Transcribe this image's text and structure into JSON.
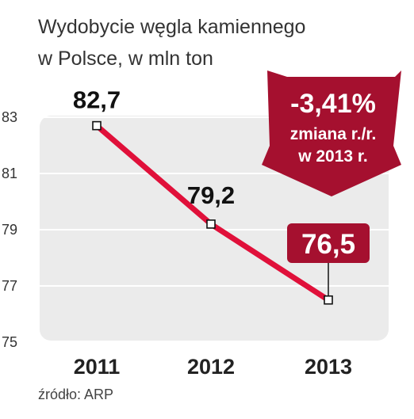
{
  "title_line1": "Wydobycie węgla kamiennego",
  "title_line2": "w Polsce, w mln ton",
  "source": "źródło: ARP",
  "badge": {
    "value": "-3,41%",
    "line2": "zmiana r./r.",
    "line3": "w 2013 r."
  },
  "colors": {
    "line": "#e0103a",
    "accent": "#a5102f",
    "plot_bg": "#ebebeb",
    "grid": "#ffffff"
  },
  "chart_data": {
    "type": "line",
    "title": "Wydobycie węgla kamiennego w Polsce, w mln ton",
    "categories": [
      "2011",
      "2012",
      "2013"
    ],
    "values": [
      82.7,
      79.2,
      76.5
    ],
    "data_labels": [
      "82,7",
      "79,2",
      "76,5"
    ],
    "ylim": [
      75,
      83
    ],
    "yticks": [
      "75",
      "77",
      "79",
      "81",
      "83"
    ],
    "grid": true,
    "highlight_index": 2
  }
}
